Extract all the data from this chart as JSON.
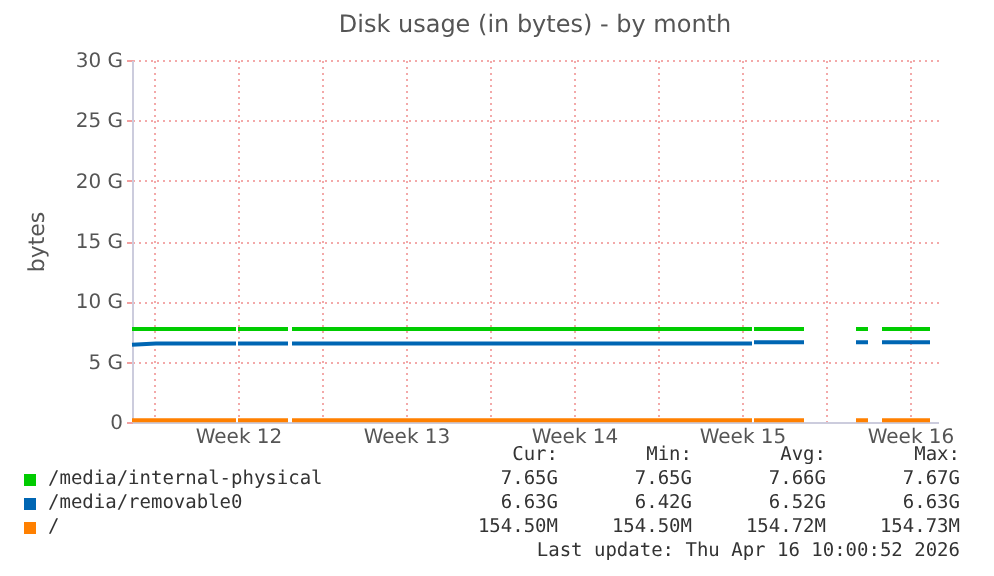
{
  "chart_data": {
    "type": "line",
    "title": "Disk usage (in bytes) - by month",
    "ylabel": "bytes",
    "xlim": [
      "2026-03-14T02:00",
      "2026-04-16T16:00"
    ],
    "xticks": [
      {
        "value": "2026-03-15",
        "label": null
      },
      {
        "value": "2026-03-18T12:00",
        "label": "Week 12"
      },
      {
        "value": "2026-03-22",
        "label": null
      },
      {
        "value": "2026-03-25T12:00",
        "label": "Week 13"
      },
      {
        "value": "2026-03-29",
        "label": null
      },
      {
        "value": "2026-04-01T12:00",
        "label": "Week 14"
      },
      {
        "value": "2026-04-05",
        "label": null
      },
      {
        "value": "2026-04-08T12:00",
        "label": "Week 15"
      },
      {
        "value": "2026-04-12",
        "label": null
      },
      {
        "value": "2026-04-15T12:00",
        "label": "Week 16"
      }
    ],
    "ylim": [
      0,
      30
    ],
    "yticks": [
      {
        "value": 0,
        "label": "0"
      },
      {
        "value": 5,
        "label": "5 G"
      },
      {
        "value": 10,
        "label": "10 G"
      },
      {
        "value": 15,
        "label": "15 G"
      },
      {
        "value": 20,
        "label": "20 G"
      },
      {
        "value": 25,
        "label": "25 G"
      },
      {
        "value": 30,
        "label": "30 G"
      }
    ],
    "grid": true,
    "legend": "bottom",
    "series": [
      {
        "name": "/media/internal-physical",
        "color": "#00cc00",
        "x": [
          "2026-03-14T02:00",
          "2026-03-18T10:00",
          "2026-03-18T11:00",
          "2026-03-18T12:00",
          "2026-03-20T14:00",
          "2026-03-20T16:00",
          "2026-03-20T18:00",
          "2026-04-08T22:00",
          "2026-04-08T23:00",
          "2026-04-09T00:00",
          "2026-04-11T02:00",
          "2026-04-12T06:00",
          "2026-04-13T06:00",
          "2026-04-13T18:00",
          "2026-04-14T00:00",
          "2026-04-14T08:00",
          "2026-04-16T08:00"
        ],
        "values": [
          7.7,
          7.7,
          null,
          7.7,
          7.7,
          null,
          7.7,
          7.7,
          null,
          7.7,
          7.7,
          null,
          7.7,
          7.7,
          null,
          7.7,
          7.7
        ]
      },
      {
        "name": "/media/removable0",
        "color": "#0066b3",
        "x": [
          "2026-03-14T02:00",
          "2026-03-15T02:00",
          "2026-03-18T10:00",
          "2026-03-18T11:00",
          "2026-03-18T12:00",
          "2026-03-20T14:00",
          "2026-03-20T16:00",
          "2026-03-20T18:00",
          "2026-04-08T22:00",
          "2026-04-08T23:00",
          "2026-04-09T00:00",
          "2026-04-11T02:00",
          "2026-04-12T06:00",
          "2026-04-13T06:00",
          "2026-04-13T18:00",
          "2026-04-14T00:00",
          "2026-04-14T08:00",
          "2026-04-16T08:00"
        ],
        "values": [
          6.4,
          6.5,
          6.5,
          null,
          6.5,
          6.5,
          null,
          6.5,
          6.5,
          null,
          6.6,
          6.6,
          null,
          6.6,
          6.6,
          null,
          6.6,
          6.6
        ]
      },
      {
        "name": "/",
        "color": "#ff8000",
        "x": [
          "2026-03-14T02:00",
          "2026-03-18T10:00",
          "2026-03-18T11:00",
          "2026-03-18T12:00",
          "2026-03-20T14:00",
          "2026-03-20T16:00",
          "2026-03-20T18:00",
          "2026-04-08T22:00",
          "2026-04-08T23:00",
          "2026-04-09T00:00",
          "2026-04-11T02:00",
          "2026-04-12T06:00",
          "2026-04-13T06:00",
          "2026-04-13T18:00",
          "2026-04-14T00:00",
          "2026-04-14T08:00",
          "2026-04-16T08:00"
        ],
        "values": [
          0.15,
          0.15,
          null,
          0.15,
          0.15,
          null,
          0.15,
          0.15,
          null,
          0.15,
          0.15,
          null,
          0.15,
          0.15,
          null,
          0.15,
          0.15
        ]
      }
    ],
    "annotations": [
      "Cur:",
      "Min:",
      "Avg:",
      "Max:",
      "7.65G",
      "7.65G",
      "7.66G",
      "7.67G",
      "6.63G",
      "6.42G",
      "6.52G",
      "6.63G",
      "154.50M",
      "154.50M",
      "154.72M",
      "154.73M",
      "Last update: Thu Apr 16 10:00:52 2026"
    ]
  }
}
